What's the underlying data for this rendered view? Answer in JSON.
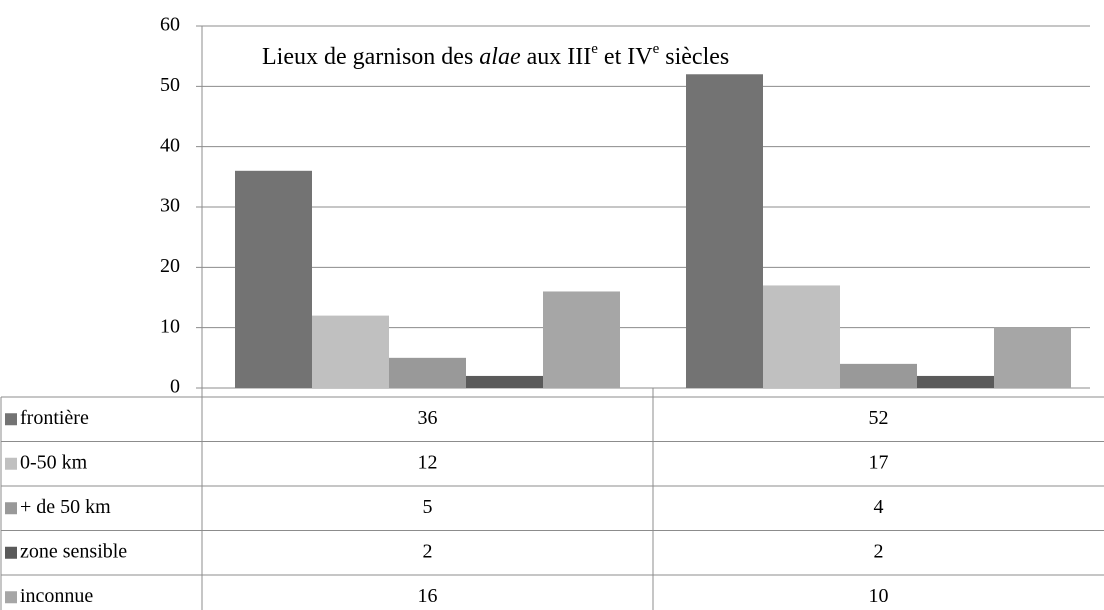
{
  "chart_data": {
    "type": "bar",
    "title": [
      "Lieux de garnison des ",
      "alae",
      " aux III",
      "e",
      " et IV",
      "e",
      " siècles"
    ],
    "categories": [
      null,
      null
    ],
    "series": [
      {
        "name": "frontière",
        "color": "#737373",
        "values": [
          36,
          52
        ]
      },
      {
        "name": "0-50 km",
        "color": "#c0c0c0",
        "values": [
          12,
          17
        ]
      },
      {
        "name": "+ de 50 km",
        "color": "#999999",
        "values": [
          5,
          4
        ]
      },
      {
        "name": "zone sensible",
        "color": "#5a5a5a",
        "values": [
          2,
          2
        ]
      },
      {
        "name": "inconnue",
        "color": "#a6a6a6",
        "values": [
          16,
          10
        ]
      }
    ],
    "ylim": [
      0,
      60
    ],
    "yticks": [
      0,
      10,
      20,
      30,
      40,
      50,
      60
    ],
    "grid": true,
    "legend": "table"
  }
}
